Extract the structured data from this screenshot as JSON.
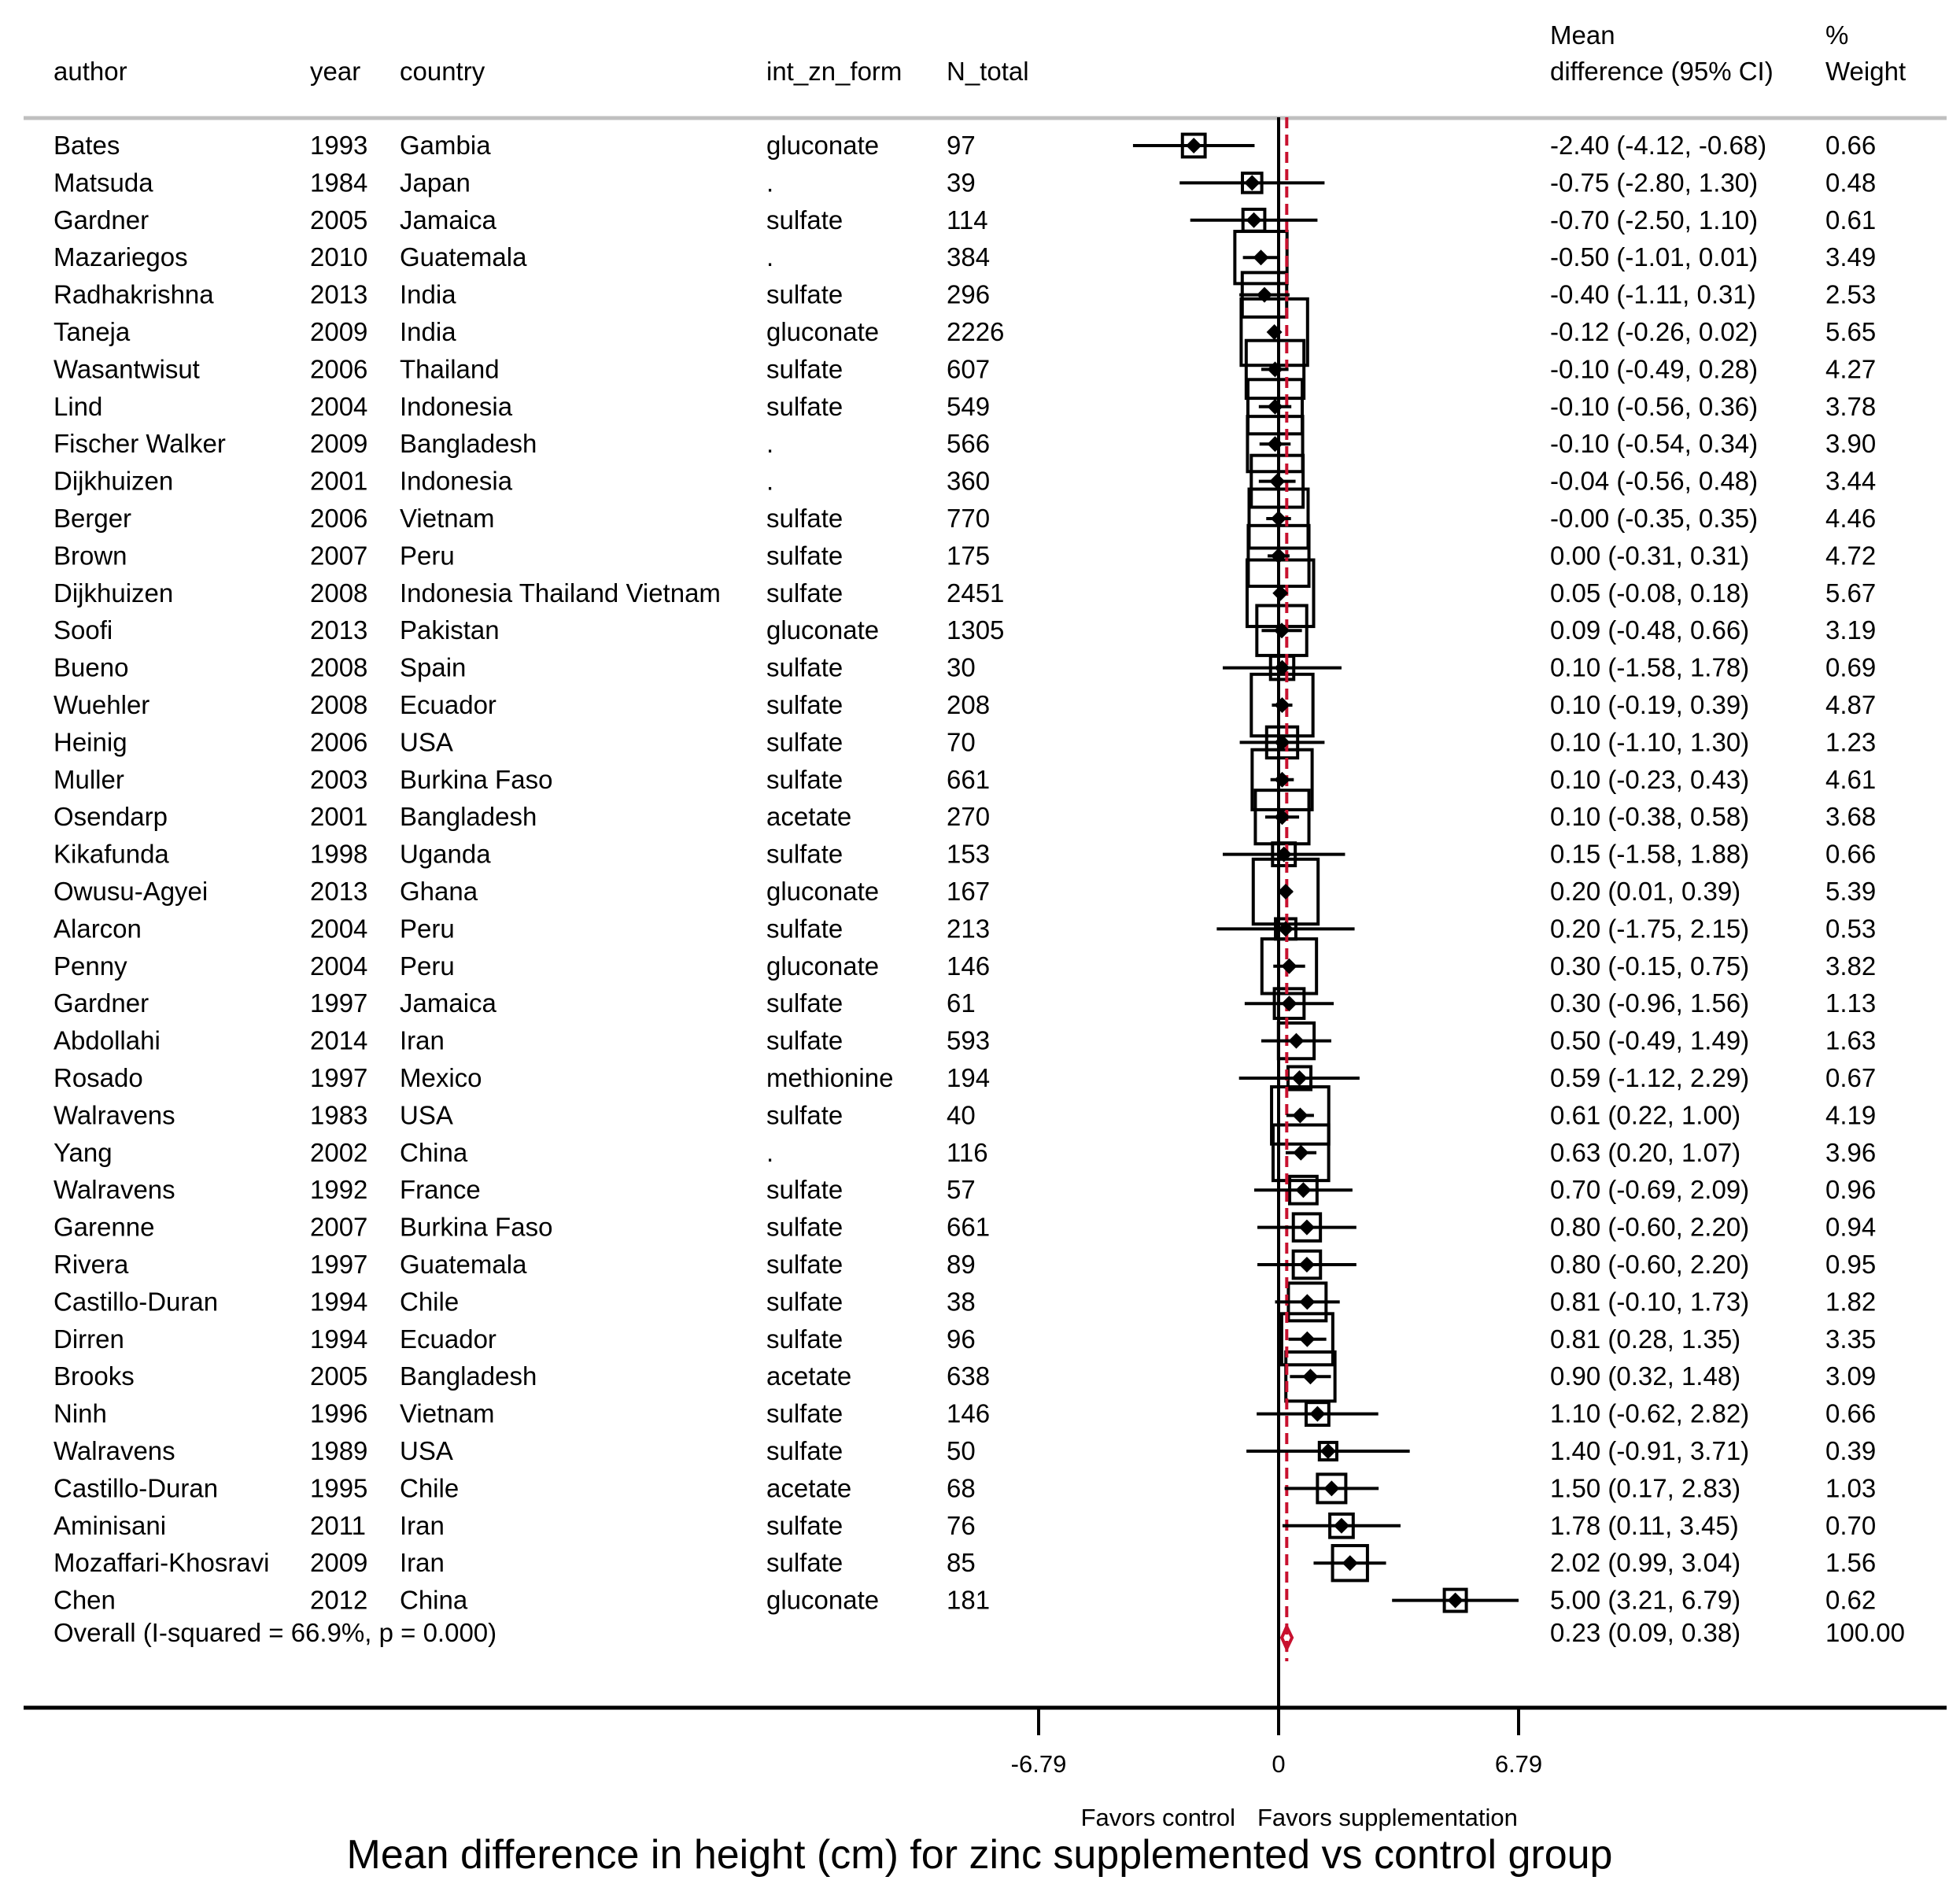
{
  "chart_data": {
    "type": "forest",
    "title": "Mean difference in height (cm) for zinc supplemented vs control group",
    "columns": [
      "author",
      "year",
      "country",
      "int_zn_form",
      "N_total"
    ],
    "effect_header_lines": [
      "Mean",
      "difference (95% CI)"
    ],
    "weight_header_lines": [
      "%",
      "Weight"
    ],
    "studies": [
      {
        "author": "Bates",
        "year": "1993",
        "country": "Gambia",
        "form": "gluconate",
        "n": "97",
        "md": -2.4,
        "lo": -4.12,
        "hi": -0.68,
        "weight": 0.66,
        "ci_text": "-2.40 (-4.12, -0.68)",
        "weight_text": "0.66"
      },
      {
        "author": "Matsuda",
        "year": "1984",
        "country": "Japan",
        "form": ".",
        "n": "39",
        "md": -0.75,
        "lo": -2.8,
        "hi": 1.3,
        "weight": 0.48,
        "ci_text": "-0.75 (-2.80, 1.30)",
        "weight_text": "0.48"
      },
      {
        "author": "Gardner",
        "year": "2005",
        "country": "Jamaica",
        "form": "sulfate",
        "n": "114",
        "md": -0.7,
        "lo": -2.5,
        "hi": 1.1,
        "weight": 0.61,
        "ci_text": "-0.70 (-2.50, 1.10)",
        "weight_text": "0.61"
      },
      {
        "author": "Mazariegos",
        "year": "2010",
        "country": "Guatemala",
        "form": ".",
        "n": "384",
        "md": -0.5,
        "lo": -1.01,
        "hi": 0.01,
        "weight": 3.49,
        "ci_text": "-0.50 (-1.01, 0.01)",
        "weight_text": "3.49"
      },
      {
        "author": "Radhakrishna",
        "year": "2013",
        "country": "India",
        "form": "sulfate",
        "n": "296",
        "md": -0.4,
        "lo": -1.11,
        "hi": 0.31,
        "weight": 2.53,
        "ci_text": "-0.40 (-1.11, 0.31)",
        "weight_text": "2.53"
      },
      {
        "author": "Taneja",
        "year": "2009",
        "country": "India",
        "form": "gluconate",
        "n": "2226",
        "md": -0.12,
        "lo": -0.26,
        "hi": 0.02,
        "weight": 5.65,
        "ci_text": "-0.12 (-0.26, 0.02)",
        "weight_text": "5.65"
      },
      {
        "author": "Wasantwisut",
        "year": "2006",
        "country": "Thailand",
        "form": "sulfate",
        "n": "607",
        "md": -0.1,
        "lo": -0.49,
        "hi": 0.28,
        "weight": 4.27,
        "ci_text": "-0.10 (-0.49, 0.28)",
        "weight_text": "4.27"
      },
      {
        "author": "Lind",
        "year": "2004",
        "country": "Indonesia",
        "form": "sulfate",
        "n": "549",
        "md": -0.1,
        "lo": -0.56,
        "hi": 0.36,
        "weight": 3.78,
        "ci_text": "-0.10 (-0.56, 0.36)",
        "weight_text": "3.78"
      },
      {
        "author": "Fischer Walker",
        "year": "2009",
        "country": "Bangladesh",
        "form": ".",
        "n": "566",
        "md": -0.1,
        "lo": -0.54,
        "hi": 0.34,
        "weight": 3.9,
        "ci_text": "-0.10 (-0.54, 0.34)",
        "weight_text": "3.90"
      },
      {
        "author": "Dijkhuizen",
        "year": "2001",
        "country": "Indonesia",
        "form": ".",
        "n": "360",
        "md": -0.04,
        "lo": -0.56,
        "hi": 0.48,
        "weight": 3.44,
        "ci_text": "-0.04 (-0.56, 0.48)",
        "weight_text": "3.44"
      },
      {
        "author": "Berger",
        "year": "2006",
        "country": "Vietnam",
        "form": "sulfate",
        "n": "770",
        "md": 0.0,
        "lo": -0.35,
        "hi": 0.35,
        "weight": 4.46,
        "ci_text": "-0.00 (-0.35, 0.35)",
        "weight_text": "4.46"
      },
      {
        "author": "Brown",
        "year": "2007",
        "country": "Peru",
        "form": "sulfate",
        "n": "175",
        "md": 0.0,
        "lo": -0.31,
        "hi": 0.31,
        "weight": 4.72,
        "ci_text": "0.00 (-0.31, 0.31)",
        "weight_text": "4.72"
      },
      {
        "author": "Dijkhuizen",
        "year": "2008",
        "country": "Indonesia Thailand Vietnam",
        "form": "sulfate",
        "n": "2451",
        "md": 0.05,
        "lo": -0.08,
        "hi": 0.18,
        "weight": 5.67,
        "ci_text": "0.05 (-0.08, 0.18)",
        "weight_text": "5.67"
      },
      {
        "author": "Soofi",
        "year": "2013",
        "country": "Pakistan",
        "form": "gluconate",
        "n": "1305",
        "md": 0.09,
        "lo": -0.48,
        "hi": 0.66,
        "weight": 3.19,
        "ci_text": "0.09 (-0.48, 0.66)",
        "weight_text": "3.19"
      },
      {
        "author": "Bueno",
        "year": "2008",
        "country": "Spain",
        "form": "sulfate",
        "n": "30",
        "md": 0.1,
        "lo": -1.58,
        "hi": 1.78,
        "weight": 0.69,
        "ci_text": "0.10 (-1.58, 1.78)",
        "weight_text": "0.69"
      },
      {
        "author": "Wuehler",
        "year": "2008",
        "country": "Ecuador",
        "form": "sulfate",
        "n": "208",
        "md": 0.1,
        "lo": -0.19,
        "hi": 0.39,
        "weight": 4.87,
        "ci_text": "0.10 (-0.19, 0.39)",
        "weight_text": "4.87"
      },
      {
        "author": "Heinig",
        "year": "2006",
        "country": "USA",
        "form": "sulfate",
        "n": "70",
        "md": 0.1,
        "lo": -1.1,
        "hi": 1.3,
        "weight": 1.23,
        "ci_text": "0.10 (-1.10, 1.30)",
        "weight_text": "1.23"
      },
      {
        "author": "Muller",
        "year": "2003",
        "country": "Burkina Faso",
        "form": "sulfate",
        "n": "661",
        "md": 0.1,
        "lo": -0.23,
        "hi": 0.43,
        "weight": 4.61,
        "ci_text": "0.10 (-0.23, 0.43)",
        "weight_text": "4.61"
      },
      {
        "author": "Osendarp",
        "year": "2001",
        "country": "Bangladesh",
        "form": "acetate",
        "n": "270",
        "md": 0.1,
        "lo": -0.38,
        "hi": 0.58,
        "weight": 3.68,
        "ci_text": "0.10 (-0.38, 0.58)",
        "weight_text": "3.68"
      },
      {
        "author": "Kikafunda",
        "year": "1998",
        "country": "Uganda",
        "form": "sulfate",
        "n": "153",
        "md": 0.15,
        "lo": -1.58,
        "hi": 1.88,
        "weight": 0.66,
        "ci_text": "0.15 (-1.58, 1.88)",
        "weight_text": "0.66"
      },
      {
        "author": "Owusu-Agyei",
        "year": "2013",
        "country": "Ghana",
        "form": "gluconate",
        "n": "167",
        "md": 0.2,
        "lo": 0.01,
        "hi": 0.39,
        "weight": 5.39,
        "ci_text": "0.20 (0.01, 0.39)",
        "weight_text": "5.39"
      },
      {
        "author": "Alarcon",
        "year": "2004",
        "country": "Peru",
        "form": "sulfate",
        "n": "213",
        "md": 0.2,
        "lo": -1.75,
        "hi": 2.15,
        "weight": 0.53,
        "ci_text": "0.20 (-1.75, 2.15)",
        "weight_text": "0.53"
      },
      {
        "author": "Penny",
        "year": "2004",
        "country": "Peru",
        "form": "gluconate",
        "n": "146",
        "md": 0.3,
        "lo": -0.15,
        "hi": 0.75,
        "weight": 3.82,
        "ci_text": "0.30 (-0.15, 0.75)",
        "weight_text": "3.82"
      },
      {
        "author": "Gardner",
        "year": "1997",
        "country": "Jamaica",
        "form": "sulfate",
        "n": "61",
        "md": 0.3,
        "lo": -0.96,
        "hi": 1.56,
        "weight": 1.13,
        "ci_text": "0.30 (-0.96, 1.56)",
        "weight_text": "1.13"
      },
      {
        "author": "Abdollahi",
        "year": "2014",
        "country": "Iran",
        "form": "sulfate",
        "n": "593",
        "md": 0.5,
        "lo": -0.49,
        "hi": 1.49,
        "weight": 1.63,
        "ci_text": "0.50 (-0.49, 1.49)",
        "weight_text": "1.63"
      },
      {
        "author": "Rosado",
        "year": "1997",
        "country": "Mexico",
        "form": "methionine",
        "n": "194",
        "md": 0.59,
        "lo": -1.12,
        "hi": 2.29,
        "weight": 0.67,
        "ci_text": "0.59 (-1.12, 2.29)",
        "weight_text": "0.67"
      },
      {
        "author": "Walravens",
        "year": "1983",
        "country": "USA",
        "form": "sulfate",
        "n": "40",
        "md": 0.61,
        "lo": 0.22,
        "hi": 1.0,
        "weight": 4.19,
        "ci_text": "0.61 (0.22, 1.00)",
        "weight_text": "4.19"
      },
      {
        "author": "Yang",
        "year": "2002",
        "country": "China",
        "form": ".",
        "n": "116",
        "md": 0.63,
        "lo": 0.2,
        "hi": 1.07,
        "weight": 3.96,
        "ci_text": "0.63 (0.20, 1.07)",
        "weight_text": "3.96"
      },
      {
        "author": "Walravens",
        "year": "1992",
        "country": "France",
        "form": "sulfate",
        "n": "57",
        "md": 0.7,
        "lo": -0.69,
        "hi": 2.09,
        "weight": 0.96,
        "ci_text": "0.70 (-0.69, 2.09)",
        "weight_text": "0.96"
      },
      {
        "author": "Garenne",
        "year": "2007",
        "country": "Burkina Faso",
        "form": "sulfate",
        "n": "661",
        "md": 0.8,
        "lo": -0.6,
        "hi": 2.2,
        "weight": 0.94,
        "ci_text": "0.80 (-0.60, 2.20)",
        "weight_text": "0.94"
      },
      {
        "author": "Rivera",
        "year": "1997",
        "country": "Guatemala",
        "form": "sulfate",
        "n": "89",
        "md": 0.8,
        "lo": -0.6,
        "hi": 2.2,
        "weight": 0.95,
        "ci_text": "0.80 (-0.60, 2.20)",
        "weight_text": "0.95"
      },
      {
        "author": "Castillo-Duran",
        "year": "1994",
        "country": "Chile",
        "form": "sulfate",
        "n": "38",
        "md": 0.81,
        "lo": -0.1,
        "hi": 1.73,
        "weight": 1.82,
        "ci_text": "0.81 (-0.10, 1.73)",
        "weight_text": "1.82"
      },
      {
        "author": "Dirren",
        "year": "1994",
        "country": "Ecuador",
        "form": "sulfate",
        "n": "96",
        "md": 0.81,
        "lo": 0.28,
        "hi": 1.35,
        "weight": 3.35,
        "ci_text": "0.81 (0.28, 1.35)",
        "weight_text": "3.35"
      },
      {
        "author": "Brooks",
        "year": "2005",
        "country": "Bangladesh",
        "form": "acetate",
        "n": "638",
        "md": 0.9,
        "lo": 0.32,
        "hi": 1.48,
        "weight": 3.09,
        "ci_text": "0.90 (0.32, 1.48)",
        "weight_text": "3.09"
      },
      {
        "author": "Ninh",
        "year": "1996",
        "country": "Vietnam",
        "form": "sulfate",
        "n": "146",
        "md": 1.1,
        "lo": -0.62,
        "hi": 2.82,
        "weight": 0.66,
        "ci_text": "1.10 (-0.62, 2.82)",
        "weight_text": "0.66"
      },
      {
        "author": "Walravens",
        "year": "1989",
        "country": "USA",
        "form": "sulfate",
        "n": "50",
        "md": 1.4,
        "lo": -0.91,
        "hi": 3.71,
        "weight": 0.39,
        "ci_text": "1.40 (-0.91, 3.71)",
        "weight_text": "0.39"
      },
      {
        "author": "Castillo-Duran",
        "year": "1995",
        "country": "Chile",
        "form": "acetate",
        "n": "68",
        "md": 1.5,
        "lo": 0.17,
        "hi": 2.83,
        "weight": 1.03,
        "ci_text": "1.50 (0.17, 2.83)",
        "weight_text": "1.03"
      },
      {
        "author": "Aminisani",
        "year": "2011",
        "country": "Iran",
        "form": "sulfate",
        "n": "76",
        "md": 1.78,
        "lo": 0.11,
        "hi": 3.45,
        "weight": 0.7,
        "ci_text": "1.78 (0.11, 3.45)",
        "weight_text": "0.70"
      },
      {
        "author": "Mozaffari-Khosravi",
        "year": "2009",
        "country": "Iran",
        "form": "sulfate",
        "n": "85",
        "md": 2.02,
        "lo": 0.99,
        "hi": 3.04,
        "weight": 1.56,
        "ci_text": "2.02 (0.99, 3.04)",
        "weight_text": "1.56"
      },
      {
        "author": "Chen",
        "year": "2012",
        "country": "China",
        "form": "gluconate",
        "n": "181",
        "md": 5.0,
        "lo": 3.21,
        "hi": 6.79,
        "weight": 0.62,
        "ci_text": "5.00 (3.21, 6.79)",
        "weight_text": "0.62"
      }
    ],
    "overall": {
      "label": "Overall  (I-squared = 66.9%, p = 0.000)",
      "md": 0.23,
      "lo": 0.09,
      "hi": 0.38,
      "ci_text": "0.23 (0.09, 0.38)",
      "weight_text": "100.00"
    },
    "x_ticks": [
      {
        "value": -6.79,
        "label": "-6.79"
      },
      {
        "value": 0,
        "label": "0"
      },
      {
        "value": 6.79,
        "label": "6.79"
      }
    ],
    "xlim": [
      -6.79,
      6.79
    ],
    "favors_left": "Favors control",
    "favors_right": "Favors supplementation",
    "colors": {
      "text": "#000000",
      "line": "#000000",
      "overall": "#c8102e",
      "rule": "#c0c0c0",
      "background": "#ffffff"
    }
  }
}
